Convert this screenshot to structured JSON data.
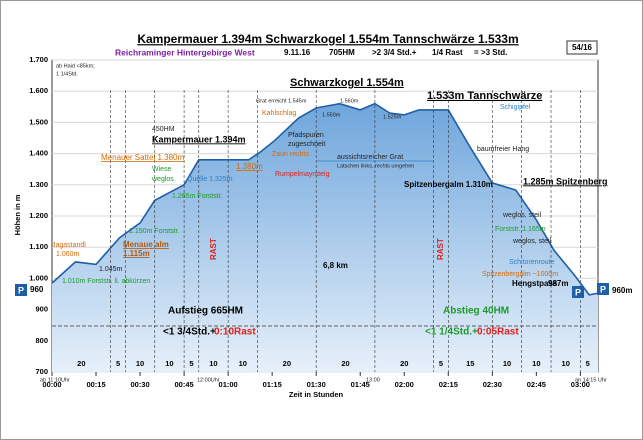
{
  "chart_data": {
    "type": "area",
    "title": "Kampermauer 1.394m  Schwarzkogel 1.554m  Tannschwärze 1.533m",
    "subtitle": [
      "Reichraminger Hintergebirge West",
      "9.11.16",
      "705HM",
      ">2 3/4 Std.+",
      "1/4 Rast",
      "= >3 Std."
    ],
    "badge": "54/16",
    "x_label": "Zeit in Stunden",
    "y_label": "Höhen in m",
    "x": [
      0,
      8,
      15,
      23,
      30,
      35,
      45,
      50,
      60,
      67,
      71,
      76,
      84,
      90,
      98,
      105,
      110,
      115,
      120,
      125,
      135,
      142,
      150,
      158,
      165,
      171,
      178,
      183,
      186
    ],
    "values": [
      985,
      1053,
      1045,
      1130,
      1178,
      1250,
      1300,
      1380,
      1380,
      1380,
      1405,
      1443,
      1514,
      1546,
      1560,
      1540,
      1560,
      1530,
      1524,
      1540,
      1540,
      1428,
      1306,
      1283,
      1187,
      1090,
      1010,
      947,
      953
    ],
    "color": "#1f5fa8",
    "fill": "#9fc3e8",
    "xlim": [
      0,
      186
    ],
    "ylim": [
      700,
      1700
    ],
    "xticks": [
      {
        "value": 0,
        "label": "00:00"
      },
      {
        "value": 15,
        "label": "00:15"
      },
      {
        "value": 30,
        "label": "00:30"
      },
      {
        "value": 45,
        "label": "00:45"
      },
      {
        "value": 60,
        "label": "01:00"
      },
      {
        "value": 75,
        "label": "01:15"
      },
      {
        "value": 90,
        "label": "01:30"
      },
      {
        "value": 105,
        "label": "01:45"
      },
      {
        "value": 120,
        "label": "02:00"
      },
      {
        "value": 135,
        "label": "02:15"
      },
      {
        "value": 150,
        "label": "02:30"
      },
      {
        "value": 165,
        "label": "02:45"
      },
      {
        "value": 180,
        "label": "03:00"
      }
    ],
    "yticks": [
      700,
      800,
      900,
      {
        "value": 1000,
        "label": "1.000"
      },
      {
        "value": 1100,
        "label": "1.100"
      },
      {
        "value": 1200,
        "label": "1.200"
      },
      {
        "value": 1300,
        "label": "1.300"
      },
      {
        "value": 1400,
        "label": "1.400"
      },
      {
        "value": 1500,
        "label": "1.500"
      },
      {
        "value": 1600,
        "label": "1.600"
      },
      {
        "value": 1700,
        "label": "1.700"
      }
    ],
    "grid": true,
    "segments": [
      {
        "minutes": 20
      },
      {
        "minutes": 5
      },
      {
        "minutes": 10
      },
      {
        "minutes": 10
      },
      {
        "minutes": 5
      },
      {
        "minutes": 10,
        "rest": true
      },
      {
        "minutes": 10
      },
      {
        "minutes": 20
      },
      {
        "minutes": 20
      },
      {
        "minutes": 20
      },
      {
        "minutes": 5,
        "rest": true
      },
      {
        "minutes": 15
      },
      {
        "minutes": 10
      },
      {
        "minutes": 10
      },
      {
        "minutes": 10
      },
      {
        "minutes": 5
      }
    ],
    "annotations": [
      "ab Haid <85km;",
      "1 1/4Std.",
      "Schwarzkogel 1.554m",
      "1.533m Tannschwärze",
      "Schigipfel",
      "Grat erreicht 1.545m",
      "1.560m",
      "1.550m",
      "1.525m",
      "Kahlschlag",
      "Pfadspuren",
      "zugeschneit",
      "450HM",
      "Kampermauer 1.394m",
      "Menauer Sattel 1.380m",
      "1.380m",
      "Zaun rechts",
      "aussichtsreicher Grat",
      "Latschen links, rechts umgehen",
      "baumfreier Hang",
      "Rumpelmayrsteig",
      "Wiese",
      "weglos",
      "Quelle 1.325m",
      "Spitzenbergalm 1.310m",
      "1.285m Spitzenberg",
      "1.265m Forststr.",
      "weglos, steil",
      "Forststr. 1.165m",
      "weglos, steil",
      "1.150m Forststr.",
      "Jagastandl",
      "1.060m",
      "Menaue alm",
      "1.115m",
      "1.045m",
      "1.010m Forststr. li. abkürzen",
      "RAST",
      "RAST",
      "6,8 km",
      "Schitorenroute",
      "Spitzenbergalm ~1000m",
      "987m",
      "Hengstpass",
      "960",
      "960m",
      "Aufstieg 665HM",
      "<1 3/4Std.+",
      "0:10Rast",
      "Abstieg 40HM",
      "<1 1/4Std.+",
      "0:05Rast",
      "ab 11:10Uhr",
      "12:00Uhr",
      "13:00",
      "an 14:15 Uhr",
      "P",
      "P",
      "P"
    ]
  }
}
